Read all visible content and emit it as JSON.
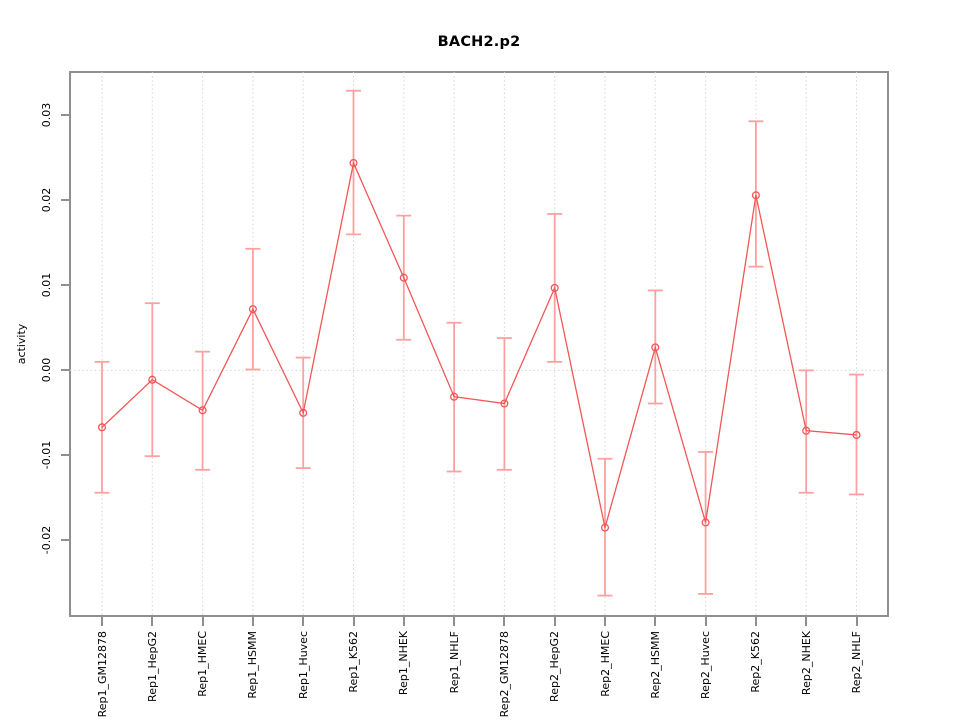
{
  "chart_data": {
    "type": "line",
    "title": "BACH2.p2",
    "xlabel": "",
    "ylabel": "activity",
    "legend": "none",
    "grid": "dashed vertical gridline at each category plus dashed horizontal line at zero",
    "marker": "open-circle",
    "categories": [
      "Rep1_GM12878",
      "Rep1_HepG2",
      "Rep1_HMEC",
      "Rep1_HSMM",
      "Rep1_Huvec",
      "Rep1_K562",
      "Rep1_NHEK",
      "Rep1_NHLF",
      "Rep2_GM12878",
      "Rep2_HepG2",
      "Rep2_HMEC",
      "Rep2_HSMM",
      "Rep2_Huvec",
      "Rep2_K562",
      "Rep2_NHEK",
      "Rep2_NHLF"
    ],
    "series": [
      {
        "name": "activity",
        "values": [
          -0.0067,
          -0.0011,
          -0.0047,
          0.0072,
          -0.005,
          0.0244,
          0.0109,
          -0.0031,
          -0.0039,
          0.0097,
          -0.0185,
          0.0027,
          -0.0179,
          0.0206,
          -0.0071,
          -0.0076
        ]
      }
    ],
    "error_low": [
      -0.0144,
      -0.0101,
      -0.0117,
      0.0001,
      -0.0115,
      0.016,
      0.0036,
      -0.0119,
      -0.0117,
      0.001,
      -0.0265,
      -0.0039,
      -0.0263,
      0.0122,
      -0.0144,
      -0.0146
    ],
    "error_high": [
      0.001,
      0.0079,
      0.0022,
      0.0143,
      0.0015,
      0.0329,
      0.0182,
      0.0056,
      0.0038,
      0.0184,
      -0.0104,
      0.0094,
      -0.0096,
      0.0293,
      0.0,
      -0.0005
    ],
    "ylim": [
      -0.0289,
      0.0351
    ],
    "yticks": [
      -0.02,
      -0.01,
      0,
      0.01,
      0.02,
      0.03
    ],
    "ytick_labels": [
      "-0.02",
      "-0.01",
      "0.00",
      "0.01",
      "0.02",
      "0.03"
    ],
    "colors": {
      "line": "#f25757",
      "point": "#f25757",
      "error_bar": "#ffa0a0",
      "grid": "#d6d6d6",
      "axis": "#8f8f8f",
      "text": "#000000",
      "background": "#ffffff"
    }
  }
}
